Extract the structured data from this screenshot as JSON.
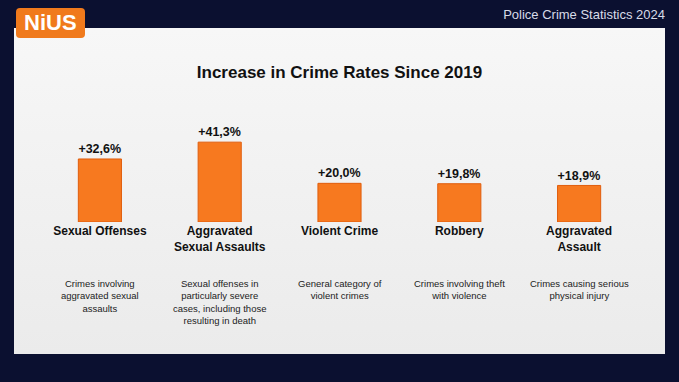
{
  "header": {
    "logo": "NiUS",
    "source": "Police Crime Statistics 2024"
  },
  "chart_data": {
    "type": "bar",
    "title": "Increase in Crime Rates Since 2019",
    "categories": [
      "Sexual Offenses",
      "Aggravated Sexual Assaults",
      "Violent Crime",
      "Robbery",
      "Aggravated Assault"
    ],
    "values": [
      32.6,
      41.3,
      20.0,
      19.8,
      18.9
    ],
    "value_labels": [
      "+32,6%",
      "+41,3%",
      "+20,0%",
      "+19,8%",
      "+18,9%"
    ],
    "annotations": [
      "Crimes involving aggravated sexual assaults",
      "Sexual offenses in particularly severe cases, including those resulting in death",
      "General category of violent crimes",
      "Crimes involving theft with violence",
      "Crimes causing serious physical injury"
    ],
    "color": "#f7791f",
    "ylim": [
      0,
      45
    ],
    "grid": false,
    "data_labels": true,
    "tick_labels": "x"
  }
}
